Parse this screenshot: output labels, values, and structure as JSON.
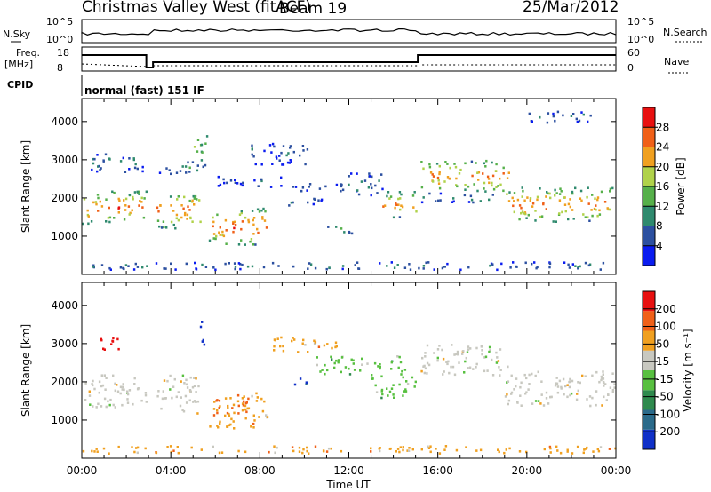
{
  "header": {
    "title": "Christmas Valley West (fitACF)",
    "beam": "Beam 19",
    "date": "25/Mar/2012"
  },
  "panels": {
    "nsky_label": "N.Sky",
    "nsky_ticks": [
      "10^5",
      "10^0"
    ],
    "nsearch_label": "N.Search",
    "freq_label": "Freq.",
    "freq_unit": "[MHz]",
    "freq_ticks": [
      "18",
      "8"
    ],
    "nave_label": "Nave",
    "nave_ticks": [
      "60",
      "0"
    ],
    "cpid_label": "CPID",
    "cpid_text": "normal (fast) 151 IF"
  },
  "chart_data": [
    {
      "type": "heatmap",
      "name": "power",
      "ylabel": "Slant Range [km]",
      "ylim": [
        0,
        4600
      ],
      "xlim": [
        0,
        24
      ],
      "x_ticks": [
        "00:00",
        "04:00",
        "08:00",
        "12:00",
        "16:00",
        "20:00",
        "00:00"
      ],
      "y_ticks": [
        1000,
        2000,
        3000,
        4000
      ],
      "colorbar_label": "Power [dB]",
      "colorbar_ticks": [
        28,
        24,
        20,
        16,
        12,
        8,
        4
      ],
      "colors": [
        "#0a1cf0",
        "#2c50a0",
        "#2f8a6e",
        "#56b04a",
        "#b0d24a",
        "#f0a020",
        "#f06018",
        "#e81010"
      ],
      "regions": [
        {
          "t0": 0.0,
          "t1": 2.9,
          "r0": 1350,
          "r1": 2200,
          "peak": 27
        },
        {
          "t0": 0.4,
          "t1": 2.8,
          "r0": 2700,
          "r1": 3200,
          "peak": 8
        },
        {
          "t0": 3.3,
          "t1": 5.3,
          "r0": 1200,
          "r1": 2200,
          "peak": 26
        },
        {
          "t0": 3.4,
          "t1": 5.2,
          "r0": 2650,
          "r1": 3000,
          "peak": 10
        },
        {
          "t0": 5.0,
          "t1": 5.6,
          "r0": 2800,
          "r1": 3800,
          "peak": 16
        },
        {
          "t0": 5.7,
          "t1": 8.3,
          "r0": 800,
          "r1": 1750,
          "peak": 28
        },
        {
          "t0": 6.0,
          "t1": 9.0,
          "r0": 2300,
          "r1": 2600,
          "peak": 6
        },
        {
          "t0": 7.5,
          "t1": 10.2,
          "r0": 2900,
          "r1": 3500,
          "peak": 7
        },
        {
          "t0": 9.3,
          "t1": 11.5,
          "r0": 2200,
          "r1": 2400,
          "peak": 6
        },
        {
          "t0": 9.2,
          "t1": 11.0,
          "r0": 1800,
          "r1": 2050,
          "peak": 6
        },
        {
          "t0": 10.8,
          "t1": 12.4,
          "r0": 1100,
          "r1": 1300,
          "peak": 14
        },
        {
          "t0": 11.5,
          "t1": 13.5,
          "r0": 2100,
          "r1": 2700,
          "peak": 9
        },
        {
          "t0": 13.5,
          "t1": 15.0,
          "r0": 1500,
          "r1": 2200,
          "peak": 24
        },
        {
          "t0": 15.2,
          "t1": 19.2,
          "r0": 2200,
          "r1": 3000,
          "peak": 26
        },
        {
          "t0": 15.2,
          "t1": 18.5,
          "r0": 1900,
          "r1": 2150,
          "peak": 10
        },
        {
          "t0": 19.0,
          "t1": 23.9,
          "r0": 1400,
          "r1": 2300,
          "peak": 26
        },
        {
          "t0": 20.0,
          "t1": 23.0,
          "r0": 4000,
          "r1": 4300,
          "peak": 8
        },
        {
          "t0": 0.0,
          "t1": 24.0,
          "r0": 150,
          "r1": 350,
          "peak": 9
        }
      ]
    },
    {
      "type": "heatmap",
      "name": "velocity",
      "ylabel": "Slant Range [km]",
      "xlabel": "Time UT",
      "ylim": [
        0,
        4600
      ],
      "xlim": [
        0,
        24
      ],
      "x_ticks": [
        "00:00",
        "04:00",
        "08:00",
        "12:00",
        "16:00",
        "20:00",
        "00:00"
      ],
      "y_ticks": [
        1000,
        2000,
        3000,
        4000
      ],
      "colorbar_label": "Velocity [m s⁻¹]",
      "colorbar_ticks": [
        200,
        100,
        50,
        15,
        -15,
        -50,
        -100,
        -200
      ],
      "colors": [
        "#1030c8",
        "#2a6a8a",
        "#2f8a4e",
        "#58c040",
        "#c8c8c0",
        "#f0a020",
        "#f06018",
        "#e81010"
      ],
      "regions": [
        {
          "t0": 0.0,
          "t1": 2.9,
          "r0": 1350,
          "r1": 2200,
          "cls": 4
        },
        {
          "t0": 0.6,
          "t1": 1.7,
          "r0": 2800,
          "r1": 3200,
          "cls": 7
        },
        {
          "t0": 3.3,
          "t1": 5.3,
          "r0": 1200,
          "r1": 2200,
          "cls": 4
        },
        {
          "t0": 5.2,
          "t1": 5.6,
          "r0": 3000,
          "r1": 3600,
          "cls": 0
        },
        {
          "t0": 5.7,
          "t1": 8.3,
          "r0": 800,
          "r1": 1750,
          "cls": 5
        },
        {
          "t0": 6.0,
          "t1": 7.5,
          "r0": 1200,
          "r1": 1600,
          "cls": 6
        },
        {
          "t0": 9.5,
          "t1": 10.3,
          "r0": 1950,
          "r1": 2150,
          "cls": 0
        },
        {
          "t0": 10.5,
          "t1": 14.5,
          "r0": 2200,
          "r1": 2700,
          "cls": 3
        },
        {
          "t0": 8.5,
          "t1": 11.5,
          "r0": 2800,
          "r1": 3200,
          "cls": 5
        },
        {
          "t0": 13.0,
          "t1": 15.0,
          "r0": 1600,
          "r1": 2200,
          "cls": 3
        },
        {
          "t0": 15.2,
          "t1": 19.2,
          "r0": 2200,
          "r1": 3000,
          "cls": 4
        },
        {
          "t0": 19.0,
          "t1": 23.9,
          "r0": 1400,
          "r1": 2300,
          "cls": 4
        },
        {
          "t0": 0.0,
          "t1": 24.0,
          "r0": 150,
          "r1": 350,
          "cls": 5
        }
      ]
    }
  ]
}
